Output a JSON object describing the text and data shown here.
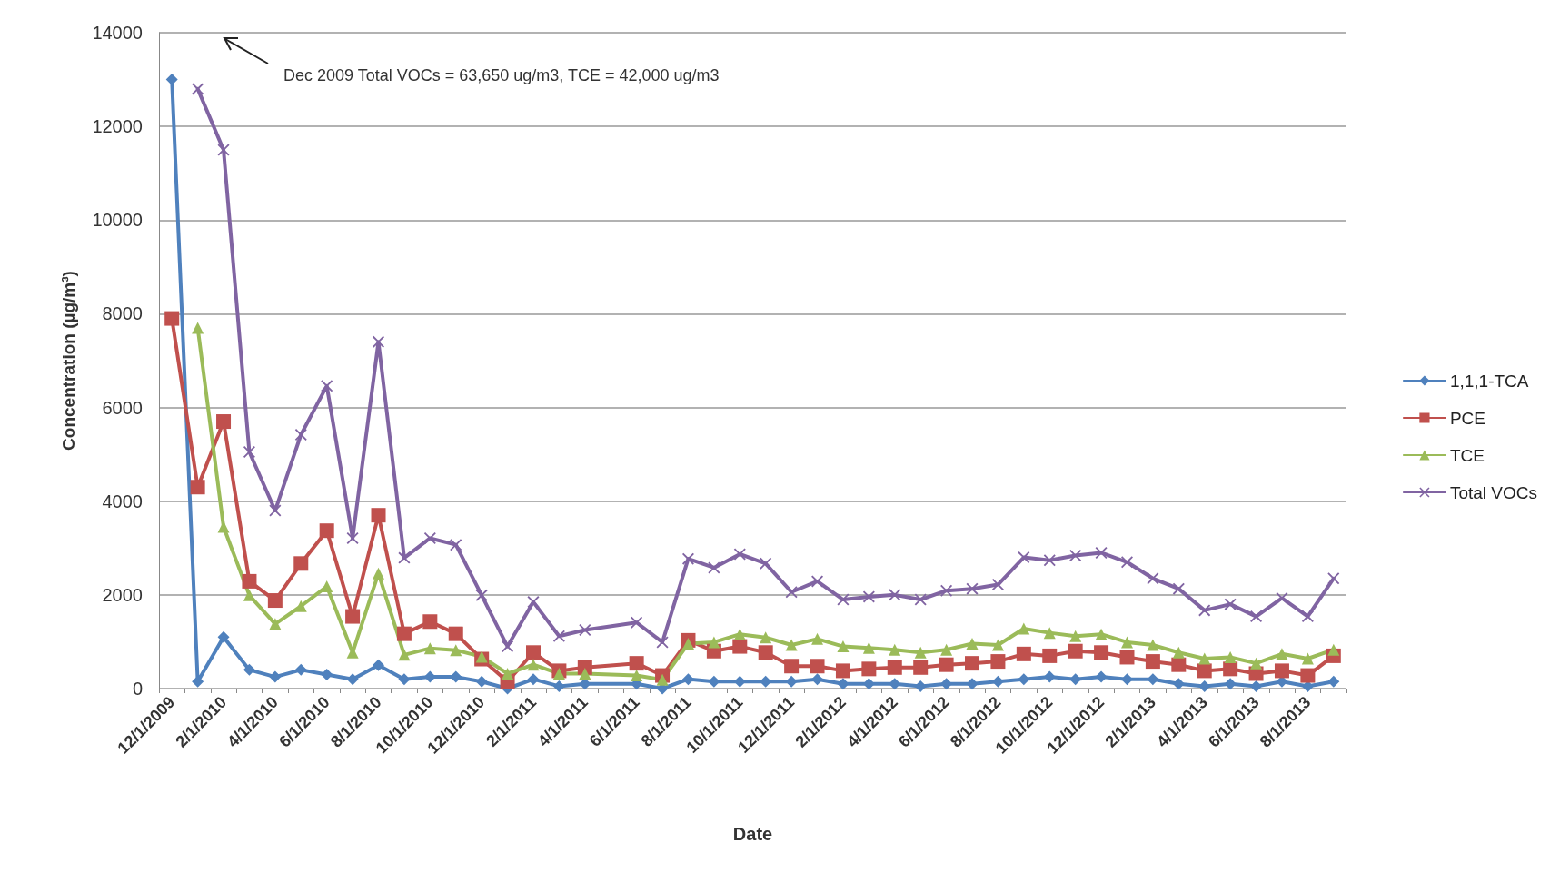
{
  "chart_data": {
    "type": "line",
    "xlabel": "Date",
    "ylabel": "Concentration (µg/m³)",
    "annotations": [
      "Dec 2009 Total VOCs = 63,650 ug/m3, TCE = 42,000 ug/m3"
    ],
    "categories": [
      "12/1/2009",
      null,
      "2/1/2010",
      null,
      "4/1/2010",
      null,
      "6/1/2010",
      null,
      "8/1/2010",
      null,
      "10/1/2010",
      null,
      "12/1/2010",
      null,
      "2/1/2011",
      null,
      "4/1/2011",
      null,
      "6/1/2011",
      null,
      "8/1/2011",
      null,
      "10/1/2011",
      null,
      "12/1/2011",
      null,
      "2/1/2012",
      null,
      "4/1/2012",
      null,
      "6/1/2012",
      null,
      "8/1/2012",
      null,
      "10/1/2012",
      null,
      "12/1/2012",
      null,
      "2/1/2013",
      null,
      "4/1/2013",
      null,
      "6/1/2013",
      null,
      "8/1/2013",
      null
    ],
    "series": [
      {
        "name": "1,1,1-TCA",
        "color": "#4f81bd",
        "marker": "diamond",
        "values": [
          13000,
          150,
          1100,
          400,
          250,
          400,
          300,
          200,
          500,
          200,
          250,
          250,
          150,
          0,
          200,
          50,
          100,
          null,
          100,
          0,
          200,
          150,
          150,
          150,
          150,
          200,
          100,
          100,
          100,
          50,
          100,
          100,
          150,
          200,
          250,
          200,
          250,
          200,
          200,
          100,
          50,
          100,
          50,
          150,
          50,
          150
        ]
      },
      {
        "name": "PCE",
        "color": "#c0504d",
        "marker": "square",
        "values": [
          7900,
          4300,
          5700,
          2290,
          1880,
          2670,
          3370,
          1540,
          3700,
          1170,
          1430,
          1170,
          630,
          150,
          770,
          380,
          450,
          null,
          540,
          280,
          1030,
          800,
          900,
          770,
          480,
          480,
          380,
          420,
          450,
          450,
          510,
          540,
          580,
          740,
          700,
          800,
          770,
          670,
          580,
          510,
          380,
          420,
          320,
          380,
          280,
          700
        ]
      },
      {
        "name": "TCE",
        "color": "#9bbb59",
        "marker": "triangle",
        "values": [
          null,
          7700,
          3450,
          1990,
          1380,
          1760,
          2180,
          770,
          2460,
          720,
          860,
          820,
          680,
          320,
          510,
          320,
          320,
          null,
          280,
          190,
          960,
          990,
          1160,
          1090,
          930,
          1060,
          900,
          870,
          830,
          770,
          830,
          960,
          930,
          1280,
          1190,
          1120,
          1160,
          990,
          930,
          770,
          640,
          670,
          540,
          740,
          640,
          830
        ]
      },
      {
        "name": "Total VOCs",
        "color": "#8064a2",
        "marker": "cross",
        "values": [
          null,
          12800,
          11500,
          5050,
          3800,
          5420,
          6460,
          3210,
          7400,
          2790,
          3210,
          3070,
          1990,
          900,
          1850,
          1120,
          1250,
          null,
          1410,
          990,
          2770,
          2580,
          2870,
          2670,
          2060,
          2290,
          1900,
          1960,
          2000,
          1900,
          2090,
          2130,
          2220,
          2800,
          2740,
          2840,
          2900,
          2700,
          2350,
          2130,
          1670,
          1800,
          1540,
          1930,
          1540,
          2350
        ]
      }
    ],
    "ylim": [
      0,
      14000
    ],
    "yticks": [
      0,
      2000,
      4000,
      6000,
      8000,
      10000,
      12000,
      14000
    ],
    "grid": "y",
    "legend": "right",
    "line_style": "solid"
  }
}
